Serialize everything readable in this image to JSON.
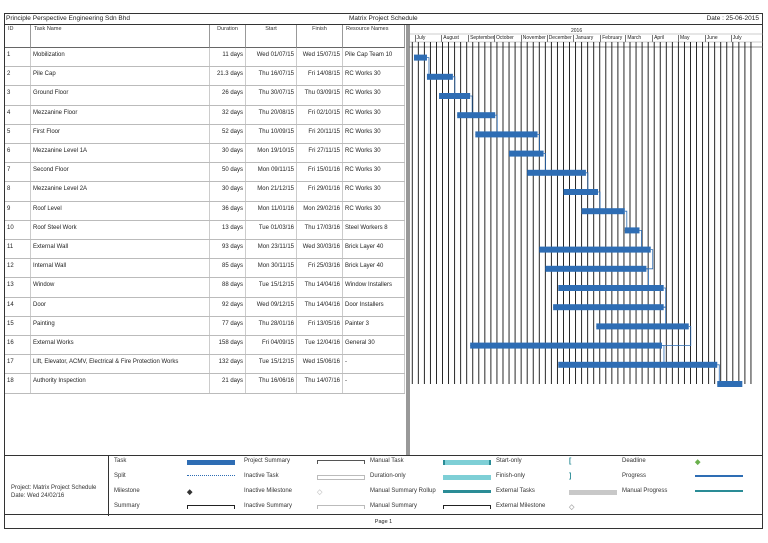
{
  "header": {
    "company": "Principle Perspective Engineering Sdn Bhd",
    "title": "Matrix Project Schedule",
    "date": "Date : 25-06-2015"
  },
  "columns": {
    "id": "ID",
    "name": "Task Name",
    "duration": "Duration",
    "start": "Start",
    "finish": "Finish",
    "resource": "Resource Names"
  },
  "timescale": {
    "year": "2016",
    "months": [
      "July",
      "August",
      "September",
      "October",
      "November",
      "December",
      "January",
      "February",
      "March",
      "April",
      "May",
      "June",
      "July"
    ]
  },
  "tasks": [
    {
      "id": "1",
      "name": "Mobilization",
      "duration": "11 days",
      "start": "Wed 01/07/15",
      "finish": "Wed 15/07/15",
      "resource": "Pile Cap Team 10",
      "s": "2015-07-01",
      "f": "2015-07-15"
    },
    {
      "id": "2",
      "name": "Pile Cap",
      "duration": "21.3 days",
      "start": "Thu 16/07/15",
      "finish": "Fri 14/08/15",
      "resource": "RC Works 30",
      "s": "2015-07-16",
      "f": "2015-08-14"
    },
    {
      "id": "3",
      "name": "Ground Floor",
      "duration": "26 days",
      "start": "Thu 30/07/15",
      "finish": "Thu 03/09/15",
      "resource": "RC Works 30",
      "s": "2015-07-30",
      "f": "2015-09-03"
    },
    {
      "id": "4",
      "name": "Mezzanine Floor",
      "duration": "32 days",
      "start": "Thu 20/08/15",
      "finish": "Fri 02/10/15",
      "resource": "RC Works 30",
      "s": "2015-08-20",
      "f": "2015-10-02"
    },
    {
      "id": "5",
      "name": "First Floor",
      "duration": "52 days",
      "start": "Thu 10/09/15",
      "finish": "Fri 20/11/15",
      "resource": "RC Works 30",
      "s": "2015-09-10",
      "f": "2015-11-20"
    },
    {
      "id": "6",
      "name": "Mezzanine Level 1A",
      "duration": "30 days",
      "start": "Mon 19/10/15",
      "finish": "Fri 27/11/15",
      "resource": "RC Works 30",
      "s": "2015-10-19",
      "f": "2015-11-27"
    },
    {
      "id": "7",
      "name": "Second Floor",
      "duration": "50 days",
      "start": "Mon 09/11/15",
      "finish": "Fri 15/01/16",
      "resource": "RC Works 30",
      "s": "2015-11-09",
      "f": "2016-01-15"
    },
    {
      "id": "8",
      "name": "Mezzanine Level 2A",
      "duration": "30 days",
      "start": "Mon 21/12/15",
      "finish": "Fri 29/01/16",
      "resource": "RC Works 30",
      "s": "2015-12-21",
      "f": "2016-01-29"
    },
    {
      "id": "9",
      "name": "Roof Level",
      "duration": "36 days",
      "start": "Mon 11/01/16",
      "finish": "Mon 29/02/16",
      "resource": "RC Works 30",
      "s": "2016-01-11",
      "f": "2016-02-29"
    },
    {
      "id": "10",
      "name": "Roof Steel Work",
      "duration": "13 days",
      "start": "Tue 01/03/16",
      "finish": "Thu 17/03/16",
      "resource": "Steel Workers 8",
      "s": "2016-03-01",
      "f": "2016-03-17"
    },
    {
      "id": "11",
      "name": "External Wall",
      "duration": "93 days",
      "start": "Mon 23/11/15",
      "finish": "Wed 30/03/16",
      "resource": "Brick Layer 40",
      "s": "2015-11-23",
      "f": "2016-03-30"
    },
    {
      "id": "12",
      "name": "Internal Wall",
      "duration": "85 days",
      "start": "Mon 30/11/15",
      "finish": "Fri 25/03/16",
      "resource": "Brick Layer 40",
      "s": "2015-11-30",
      "f": "2016-03-25"
    },
    {
      "id": "13",
      "name": "Window",
      "duration": "88 days",
      "start": "Tue 15/12/15",
      "finish": "Thu 14/04/16",
      "resource": "Window Installers",
      "s": "2015-12-15",
      "f": "2016-04-14"
    },
    {
      "id": "14",
      "name": "Door",
      "duration": "92 days",
      "start": "Wed 09/12/15",
      "finish": "Thu 14/04/16",
      "resource": "Door Installers",
      "s": "2015-12-09",
      "f": "2016-04-14"
    },
    {
      "id": "15",
      "name": "Painting",
      "duration": "77 days",
      "start": "Thu 28/01/16",
      "finish": "Fri 13/05/16",
      "resource": "Painter 3",
      "s": "2016-01-28",
      "f": "2016-05-13"
    },
    {
      "id": "16",
      "name": "External Works",
      "duration": "158 days",
      "start": "Fri 04/09/15",
      "finish": "Tue 12/04/16",
      "resource": "General 30",
      "s": "2015-09-04",
      "f": "2016-04-12"
    },
    {
      "id": "17",
      "name": "Lift, Elevator, ACMV, Electrical & Fire Protection Works",
      "duration": "132 days",
      "start": "Tue 15/12/15",
      "finish": "Wed 15/06/16",
      "resource": "-",
      "s": "2015-12-15",
      "f": "2016-06-15"
    },
    {
      "id": "18",
      "name": "Authority Inspection",
      "duration": "21 days",
      "start": "Thu 16/06/16",
      "finish": "Thu 14/07/16",
      "resource": "-",
      "s": "2016-06-16",
      "f": "2016-07-14"
    }
  ],
  "legend": {
    "project": "Project: Matrix Project Schedule",
    "date": "Date: Wed 24/02/16",
    "items": [
      "Task",
      "Split",
      "Milestone",
      "Summary",
      "Project Summary",
      "Inactive Task",
      "Inactive Milestone",
      "Inactive Summary",
      "Manual Task",
      "Duration-only",
      "Manual Summary Rollup",
      "Manual Summary",
      "Start-only",
      "Finish-only",
      "External Tasks",
      "External Milestone",
      "Deadline",
      "Progress",
      "Manual Progress"
    ]
  },
  "footer": "Page 1",
  "colors": {
    "task": "#2e6db4",
    "manual": "#7ecfd6",
    "rollup": "#2a8c96",
    "deadline": "#6ab04c",
    "external": "#c8c8c8"
  }
}
